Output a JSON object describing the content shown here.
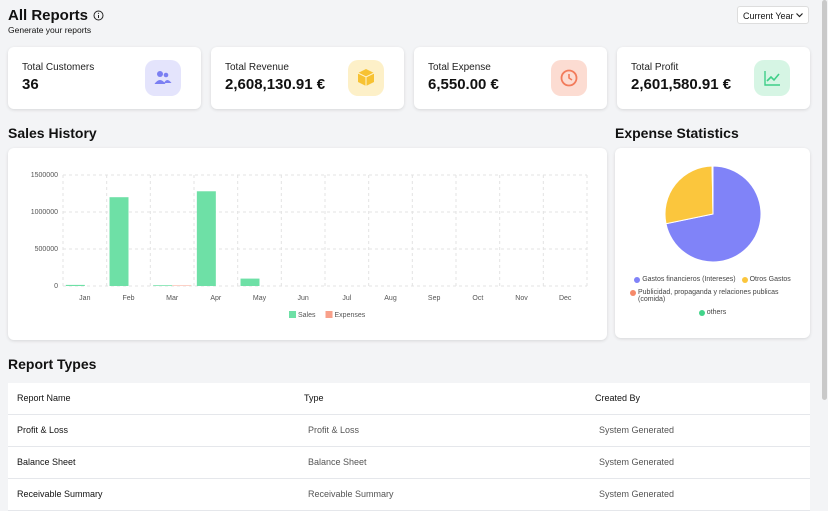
{
  "header": {
    "title": "All Reports",
    "subtitle": "Generate your reports",
    "filter": "Current Year"
  },
  "cards": [
    {
      "label": "Total Customers",
      "value": "36"
    },
    {
      "label": "Total Revenue",
      "value": "2,608,130.91 €"
    },
    {
      "label": "Total Expense",
      "value": "6,550.00 €"
    },
    {
      "label": "Total Profit",
      "value": "2,601,580.91 €"
    }
  ],
  "chart_data": [
    {
      "type": "bar",
      "title": "Sales History",
      "categories": [
        "Jan",
        "Feb",
        "Mar",
        "Apr",
        "May",
        "Jun",
        "Jul",
        "Aug",
        "Sep",
        "Oct",
        "Nov",
        "Dec"
      ],
      "series": [
        {
          "name": "Sales",
          "color": "#6ee0a6",
          "values": [
            15000,
            1200000,
            10000,
            1280000,
            100000,
            0,
            0,
            0,
            0,
            0,
            0,
            0
          ]
        },
        {
          "name": "Expenses",
          "color": "#f8a08a",
          "values": [
            0,
            0,
            6550,
            0,
            0,
            0,
            0,
            0,
            0,
            0,
            0,
            0
          ]
        }
      ],
      "ylim": [
        0,
        1500000
      ],
      "yticks": [
        0,
        500000,
        1000000,
        1500000
      ],
      "grid": true
    },
    {
      "type": "pie",
      "title": "Expense Statistics",
      "categories": [
        "Gastos financieros (Intereses)",
        "Otros Gastos",
        "Publicidad, propaganda y relaciones publicas (comida)",
        "others"
      ],
      "values": [
        4700,
        1830,
        10,
        10
      ],
      "colors": [
        "#8083f8",
        "#fbc63d",
        "#f58a6a",
        "#42d48a"
      ]
    }
  ],
  "table": {
    "title": "Report Types",
    "columns": [
      "Report Name",
      "Type",
      "Created By"
    ],
    "rows": [
      [
        "Profit & Loss",
        "Profit & Loss",
        "System Generated"
      ],
      [
        "Balance Sheet",
        "Balance Sheet",
        "System Generated"
      ],
      [
        "Receivable Summary",
        "Receivable Summary",
        "System Generated"
      ]
    ]
  }
}
